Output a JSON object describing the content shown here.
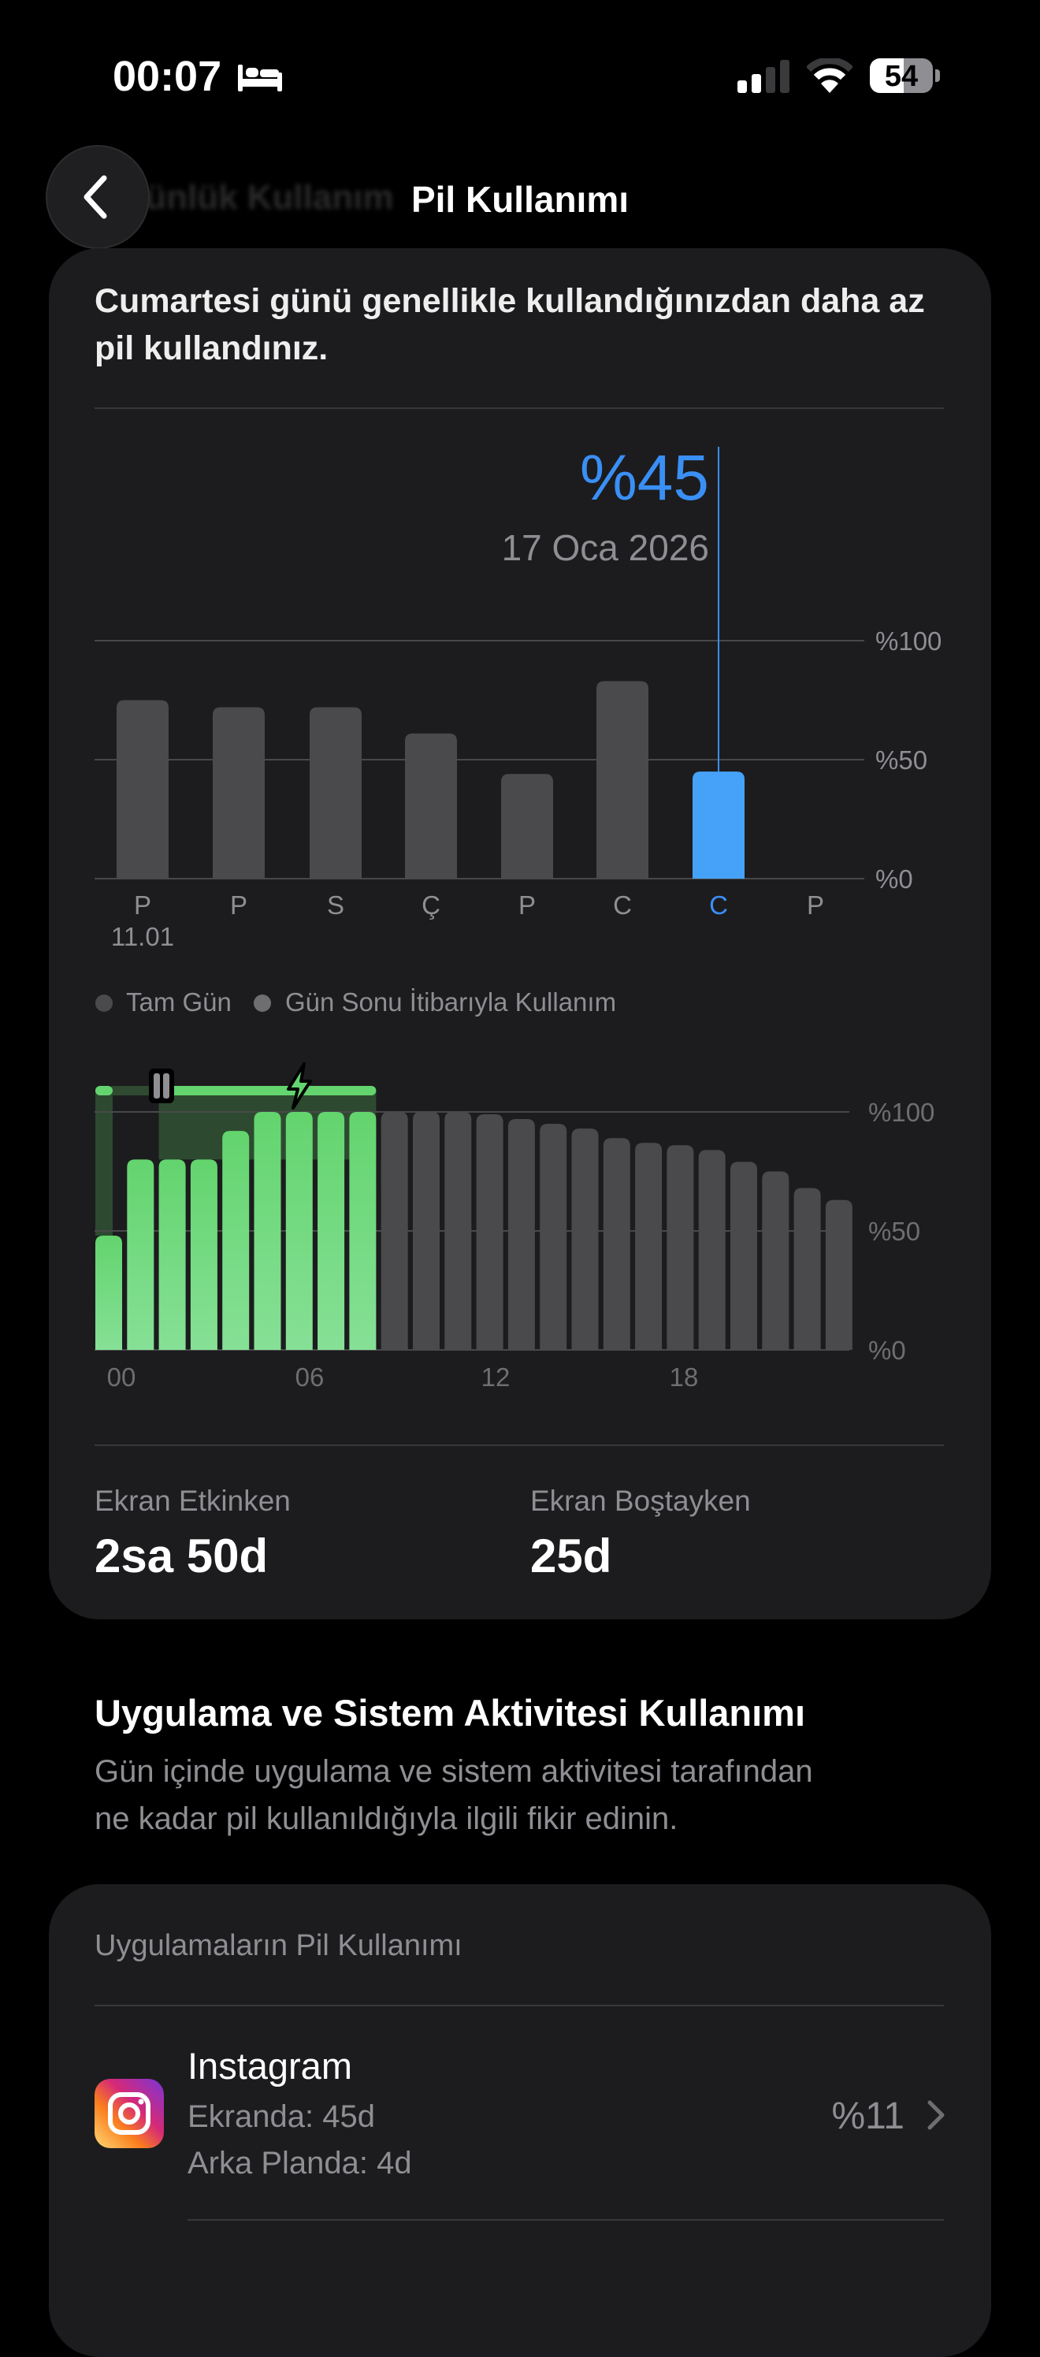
{
  "status_bar": {
    "time": "00:07",
    "sleep_icon": "bed-icon",
    "battery_level": "54",
    "battery_percent": 54
  },
  "nav": {
    "back_icon": "chevron-left-icon",
    "back_title_faded": "Günlük Kullanım",
    "title": "Pil Kullanımı"
  },
  "summary": {
    "headline_line1": "Cumartesi günü genellikle kullandığınızdan daha az",
    "headline_line2": "pil kullandınız.",
    "selected_value": "%45",
    "selected_date": "17 Oca 2026"
  },
  "colors": {
    "accent_blue": "#3a8ff5",
    "charge_green": "#63d46e",
    "bar_gray": "#4a4a4c",
    "card": "#1c1c1e"
  },
  "chart_data": [
    {
      "type": "bar",
      "categories": [
        "P",
        "P",
        "S",
        "Ç",
        "P",
        "C",
        "C",
        "P"
      ],
      "first_date_label": "11.01",
      "values": [
        75,
        72,
        72,
        61,
        44,
        83,
        45,
        null
      ],
      "selected_index": 6,
      "y_ticks": [
        "%100",
        "%50",
        "%0"
      ],
      "ylim": [
        0,
        100
      ],
      "grid": true,
      "legend": [
        "Tam Gün",
        "Gün Sonu İtibarıyla Kullanım"
      ],
      "legend_placement": "bottom-left"
    },
    {
      "type": "bar",
      "x_ticks": [
        "00",
        "06",
        "12",
        "18"
      ],
      "y_ticks": [
        "%100",
        "%50",
        "%0"
      ],
      "ylim": [
        0,
        100
      ],
      "grid": true,
      "values": [
        48,
        80,
        80,
        80,
        92,
        100,
        100,
        100,
        100,
        100,
        100,
        100,
        99,
        97,
        95,
        93,
        89,
        87,
        86,
        84,
        79,
        75,
        68,
        63
      ],
      "charging_hours": [
        0,
        1,
        2,
        3,
        4,
        5,
        6,
        7,
        8
      ],
      "charging_intervals_hours": [
        [
          0,
          0.5
        ],
        [
          2,
          5
        ]
      ],
      "paused_interval_hours": [
        0.5,
        2
      ],
      "icons": [
        "pause-icon",
        "bolt-icon"
      ]
    }
  ],
  "screen_stats": [
    {
      "label": "Ekran Etkinken",
      "value": "2sa 50d"
    },
    {
      "label": "Ekran Boştayken",
      "value": "25d"
    }
  ],
  "activity_section": {
    "title": "Uygulama ve Sistem Aktivitesi Kullanımı",
    "desc_line1": "Gün içinde uygulama ve sistem aktivitesi tarafından",
    "desc_line2": "ne kadar pil kullanıldığıyla ilgili fikir edinin."
  },
  "apps_card": {
    "header": "Uygulamaların Pil Kullanımı",
    "apps": [
      {
        "name": "Instagram",
        "screen": "Ekranda: 45d",
        "background": "Arka Planda: 4d",
        "percent": "%11",
        "icon": "instagram-icon"
      }
    ]
  }
}
